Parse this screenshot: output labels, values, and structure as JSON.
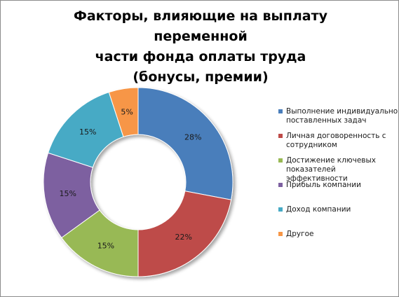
{
  "chart_data": {
    "type": "pie",
    "variant": "doughnut",
    "title": "Факторы, влияющие на выплату переменной части фонда оплаты труда (бонусы, премии)",
    "title_lines": [
      "Факторы, влияющие на выплату переменной",
      "части фонда оплаты труда",
      "(бонусы, премии)"
    ],
    "legend_position": "right",
    "slices": [
      {
        "label": "Выполнение индивидуально поставленных задач",
        "legend_lines": [
          "Выполнение индивидуально",
          "поставленных задач"
        ],
        "value": 28,
        "value_label": "28%",
        "color": "#4a7ebb"
      },
      {
        "label": "Личная договоренность с сотрудником",
        "legend_lines": [
          "Личная договоренность с",
          "сотрудником"
        ],
        "value": 22,
        "value_label": "22%",
        "color": "#be4b48"
      },
      {
        "label": "Достижение ключевых показателей эффективности",
        "legend_lines": [
          "Достижение ключевых",
          "показателей эффективности"
        ],
        "value": 15,
        "value_label": "15%",
        "color": "#98b954"
      },
      {
        "label": "Прибыль компании",
        "legend_lines": [
          "Прибыль компании"
        ],
        "value": 15,
        "value_label": "15%",
        "color": "#7d60a0"
      },
      {
        "label": "Доход компании",
        "legend_lines": [
          "Доход компании"
        ],
        "value": 15,
        "value_label": "15%",
        "color": "#46aac5"
      },
      {
        "label": "Другое",
        "legend_lines": [
          "Другое"
        ],
        "value": 5,
        "value_label": "5%",
        "color": "#f79646"
      }
    ]
  }
}
